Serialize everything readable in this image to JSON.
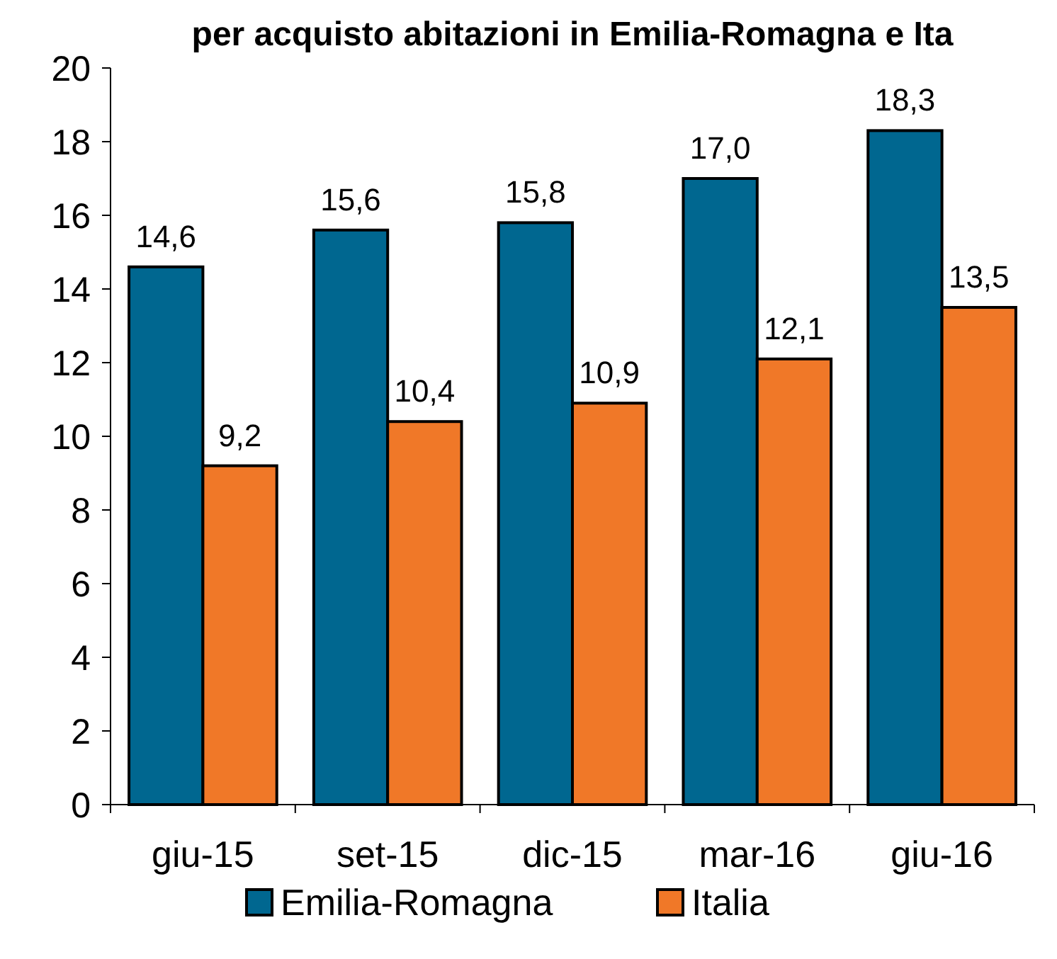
{
  "chart_data": {
    "type": "bar",
    "title": "per acquisto abitazioni in Emilia-Romagna e Ita",
    "categories": [
      "giu-15",
      "set-15",
      "dic-15",
      "mar-16",
      "giu-16"
    ],
    "series": [
      {
        "name": "Emilia-Romagna",
        "color": "#006790",
        "values": [
          14.6,
          15.6,
          15.8,
          17.0,
          18.3
        ],
        "value_labels": [
          "14,6",
          "15,6",
          "15,8",
          "17,0",
          "18,3"
        ]
      },
      {
        "name": "Italia",
        "color": "#f07828",
        "values": [
          9.2,
          10.4,
          10.9,
          12.1,
          13.5
        ],
        "value_labels": [
          "9,2",
          "10,4",
          "10,9",
          "12,1",
          "13,5"
        ]
      }
    ],
    "ylim": [
      0,
      20
    ],
    "yticks": [
      0,
      2,
      4,
      6,
      8,
      10,
      12,
      14,
      16,
      18,
      20
    ],
    "grid": false,
    "legend": "bottom"
  }
}
